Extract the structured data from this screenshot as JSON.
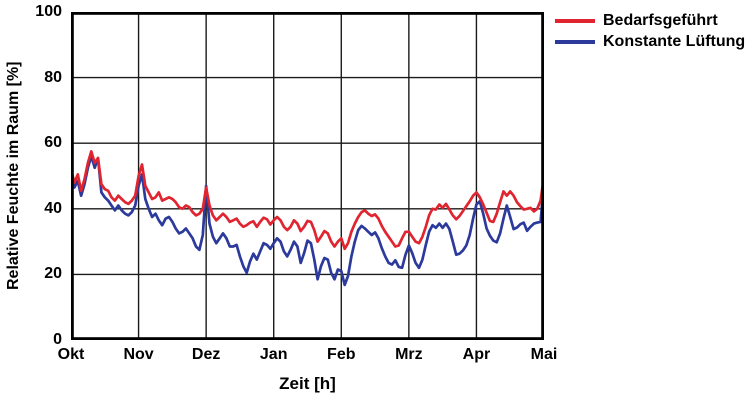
{
  "figure": {
    "background": "#ffffff"
  },
  "chart_data": {
    "type": "line",
    "title": "",
    "xlabel": "Zeit [h]",
    "ylabel": "Relative Feuchte im Raum [%]",
    "x_tick_labels": [
      "Okt",
      "Nov",
      "Dez",
      "Jan",
      "Feb",
      "Mrz",
      "Apr",
      "Mai"
    ],
    "x_start": 0,
    "x_step": 0.05,
    "x_unit": "months after Okt",
    "ylim": [
      0,
      100
    ],
    "y_ticks": [
      0,
      20,
      40,
      60,
      80,
      100
    ],
    "grid": true,
    "grid_color": "#1a1a1a",
    "frame_color": "#000000",
    "legend_position": "top-right",
    "series": [
      {
        "name": "Bedarfsgeführt",
        "color": "#e02530",
        "values": [
          52,
          48,
          50.5,
          45.5,
          49,
          54,
          57.5,
          54,
          55.5,
          47.5,
          46,
          45.5,
          43.5,
          42.5,
          44,
          43,
          42,
          41.5,
          42.5,
          44,
          50,
          53.5,
          47,
          45,
          43,
          43.5,
          45,
          42.5,
          43,
          43.5,
          43,
          42,
          40.5,
          40,
          41,
          40.5,
          39,
          38,
          38.5,
          40,
          46.5,
          41,
          38,
          36.5,
          37.5,
          38.5,
          37.5,
          36,
          36.5,
          37,
          35.5,
          34.5,
          35,
          35.8,
          36.2,
          34.5,
          36,
          37.3,
          36.8,
          35.2,
          36.5,
          37.5,
          36.5,
          34.5,
          33.5,
          34.5,
          36.5,
          35.5,
          33.2,
          34.5,
          36.3,
          36,
          33.5,
          30,
          31.5,
          33.2,
          32.5,
          30,
          28.5,
          30,
          31,
          27.8,
          29.5,
          33,
          35.5,
          37.5,
          39,
          39.5,
          38.5,
          37.8,
          38.3,
          37,
          34.8,
          33,
          31.5,
          30,
          28.5,
          28.8,
          31,
          33,
          33,
          31.5,
          30,
          29.5,
          31.5,
          34.5,
          38,
          40,
          39.8,
          41.3,
          40.3,
          41.5,
          39.8,
          38,
          36.8,
          37.8,
          39.3,
          40.8,
          42.3,
          44,
          45,
          43.5,
          41.3,
          38.8,
          36.3,
          36,
          38.5,
          42,
          45.3,
          44,
          45.3,
          44,
          42,
          40.8,
          39.8,
          40,
          40.3,
          39.2,
          40,
          42.5,
          50
        ]
      },
      {
        "name": "Konstante Lüftung",
        "color": "#2c3a9c",
        "values": [
          50,
          46.5,
          48.5,
          44,
          47.5,
          52.5,
          56,
          52.5,
          55.5,
          45,
          43.5,
          42.5,
          41,
          39.5,
          41,
          39.5,
          38.5,
          38,
          39,
          41,
          47,
          50.5,
          43,
          40,
          37.5,
          38.5,
          36.5,
          35,
          37,
          37.5,
          36,
          34,
          32.5,
          33,
          34,
          32.5,
          31,
          28.5,
          27.5,
          32,
          47,
          35.5,
          31.5,
          29.5,
          31,
          32.5,
          31,
          28.5,
          28.5,
          29,
          25.5,
          22.5,
          20.5,
          24,
          26.3,
          24.5,
          27,
          29.5,
          29,
          27.8,
          29.5,
          31,
          30,
          27,
          25.5,
          27.5,
          30,
          28.5,
          23.5,
          26.5,
          30.3,
          29.5,
          24.5,
          18.5,
          22.5,
          25,
          24.5,
          20.5,
          18.5,
          21.5,
          21,
          16.8,
          19.5,
          25.5,
          30,
          33.5,
          34.8,
          34,
          33,
          32,
          32.8,
          31,
          28,
          25.5,
          23.5,
          23,
          24.3,
          22.3,
          22,
          26,
          28.8,
          26.5,
          23.5,
          22,
          24.5,
          29,
          33,
          35,
          34.2,
          35.5,
          34.2,
          35.5,
          33.8,
          30,
          26,
          26.3,
          27.3,
          28.8,
          32,
          37,
          41.3,
          42.3,
          38.5,
          34,
          31.8,
          30.3,
          29.8,
          32.5,
          37,
          41,
          37.5,
          33.8,
          34.3,
          35.3,
          35.8,
          33.3,
          34.5,
          35.5,
          35.8,
          36,
          48.5
        ]
      }
    ]
  }
}
